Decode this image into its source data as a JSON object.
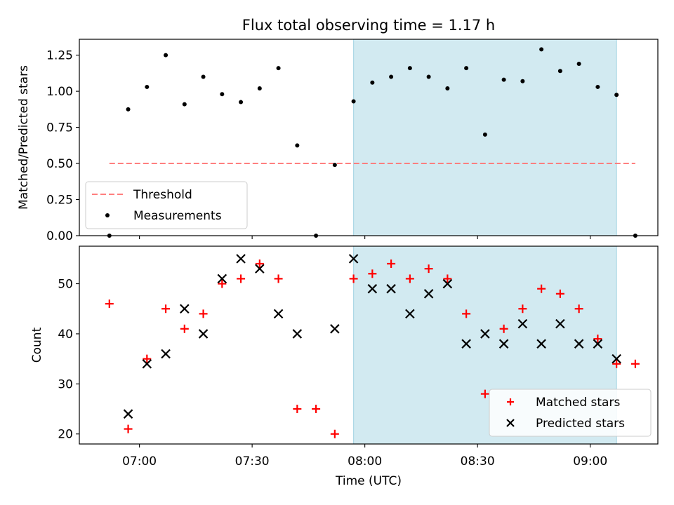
{
  "chart_data": [
    {
      "type": "scatter",
      "title": "Flux total observing time = 1.17 h",
      "xlabel": "",
      "ylabel": "Matched/Predicted stars",
      "ylim": [
        0,
        1.36
      ],
      "yticks": [
        "0.00",
        "0.25",
        "0.50",
        "0.75",
        "1.00",
        "1.25"
      ],
      "highlight_region": {
        "start": "07:57",
        "end": "09:07",
        "color": "#add8e6"
      },
      "threshold": {
        "name": "Threshold",
        "y": 0.5,
        "x_start": "06:52",
        "x_end": "09:12",
        "color": "#ff7f7f"
      },
      "series": [
        {
          "name": "Measurements",
          "color": "#000000",
          "marker": "dot",
          "x": [
            "06:52",
            "06:57",
            "07:02",
            "07:07",
            "07:12",
            "07:17",
            "07:22",
            "07:27",
            "07:32",
            "07:37",
            "07:42",
            "07:47",
            "07:52",
            "07:57",
            "08:02",
            "08:07",
            "08:12",
            "08:17",
            "08:22",
            "08:27",
            "08:32",
            "08:37",
            "08:42",
            "08:47",
            "08:52",
            "08:57",
            "09:02",
            "09:07",
            "09:12"
          ],
          "y": [
            0.0,
            0.875,
            1.03,
            1.25,
            0.91,
            1.1,
            0.98,
            0.925,
            1.02,
            1.16,
            0.625,
            0.0,
            0.49,
            0.93,
            1.06,
            1.1,
            1.16,
            1.1,
            1.02,
            1.16,
            0.7,
            1.08,
            1.07,
            1.29,
            1.14,
            1.19,
            1.03,
            0.975,
            0.0
          ]
        }
      ]
    },
    {
      "type": "scatter",
      "title": "",
      "xlabel": "Time (UTC)",
      "ylabel": "Count",
      "xlim": [
        "06:44",
        "09:18"
      ],
      "xticks": [
        "07:00",
        "07:30",
        "08:00",
        "08:30",
        "09:00"
      ],
      "ylim": [
        18,
        57.5
      ],
      "yticks": [
        "20",
        "30",
        "40",
        "50"
      ],
      "highlight_region": {
        "start": "07:57",
        "end": "09:07",
        "color": "#add8e6"
      },
      "series": [
        {
          "name": "Matched stars",
          "color": "#ff0000",
          "marker": "plus",
          "x": [
            "06:52",
            "06:57",
            "07:02",
            "07:07",
            "07:12",
            "07:17",
            "07:22",
            "07:27",
            "07:32",
            "07:37",
            "07:42",
            "07:47",
            "07:52",
            "07:57",
            "08:02",
            "08:07",
            "08:12",
            "08:17",
            "08:22",
            "08:27",
            "08:32",
            "08:37",
            "08:42",
            "08:47",
            "08:52",
            "08:57",
            "09:02",
            "09:07",
            "09:12"
          ],
          "y": [
            46,
            21,
            35,
            45,
            41,
            44,
            50,
            51,
            54,
            51,
            25,
            25,
            20,
            51,
            52,
            54,
            51,
            53,
            51,
            44,
            28,
            41,
            45,
            49,
            48,
            45,
            39,
            34,
            34
          ]
        },
        {
          "name": "Predicted stars",
          "color": "#000000",
          "marker": "x",
          "x": [
            "06:57",
            "07:02",
            "07:07",
            "07:12",
            "07:17",
            "07:22",
            "07:27",
            "07:32",
            "07:37",
            "07:42",
            "07:52",
            "07:57",
            "08:02",
            "08:07",
            "08:12",
            "08:17",
            "08:22",
            "08:27",
            "08:32",
            "08:37",
            "08:42",
            "08:47",
            "08:52",
            "08:57",
            "09:02",
            "09:07"
          ],
          "y": [
            24,
            34,
            36,
            45,
            40,
            51,
            55,
            53,
            44,
            40,
            41,
            55,
            49,
            49,
            44,
            48,
            50,
            38,
            40,
            38,
            42,
            38,
            42,
            38,
            38,
            35
          ]
        }
      ]
    }
  ]
}
